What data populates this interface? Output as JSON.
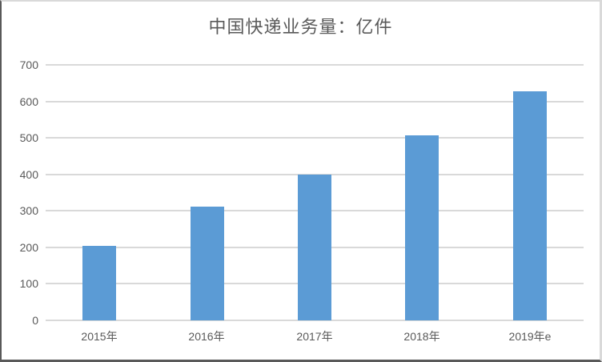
{
  "chart_data": {
    "type": "bar",
    "title": "中国快递业务量：亿件",
    "categories": [
      "2015年",
      "2016年",
      "2017年",
      "2018年",
      "2019年e"
    ],
    "values": [
      205,
      312,
      400,
      507,
      628
    ],
    "xlabel": "",
    "ylabel": "",
    "ylim": [
      0,
      700
    ],
    "ytick_step": 100,
    "ytick_labels": [
      "0",
      "100",
      "200",
      "300",
      "400",
      "500",
      "600",
      "700"
    ],
    "grid": true,
    "legend": false,
    "colors": {
      "bar": "#5B9BD5",
      "gridline": "#D9D9D9",
      "axis_line": "#D9D9D9",
      "text": "#595959"
    }
  }
}
